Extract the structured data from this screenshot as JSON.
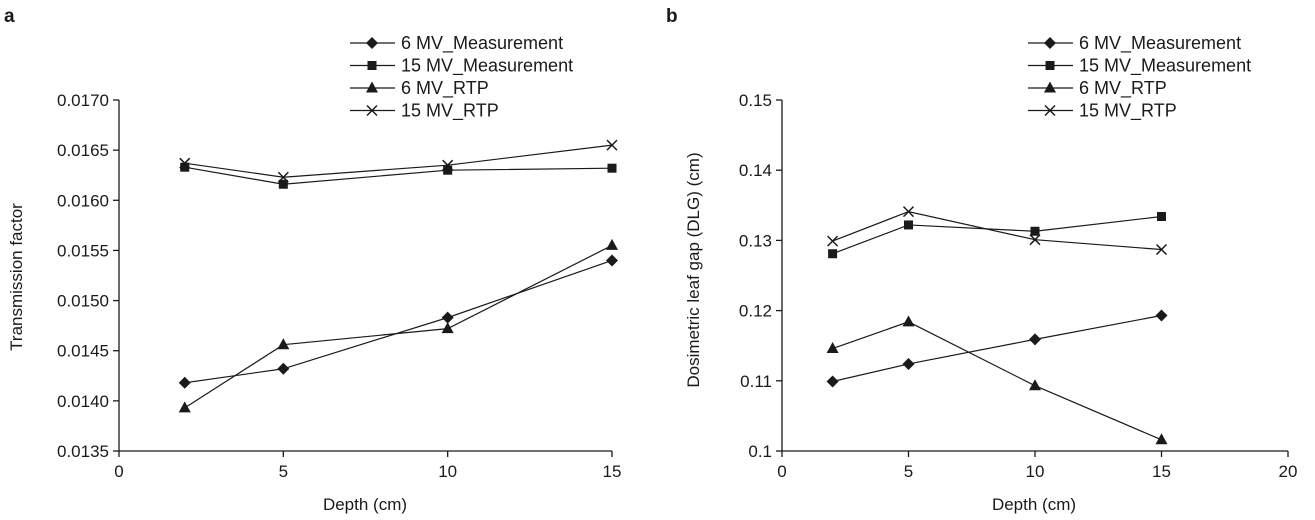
{
  "chart_data": [
    {
      "panel": "a",
      "type": "line",
      "xlabel": "Depth (cm)",
      "ylabel": "Transmission factor",
      "xlim": [
        0,
        15
      ],
      "ylim": [
        0.0135,
        0.017
      ],
      "xticks": [
        "0",
        "5",
        "10",
        "15"
      ],
      "yticks": [
        "0.0135",
        "0.0140",
        "0.0145",
        "0.0150",
        "0.0155",
        "0.0160",
        "0.0165",
        "0.0170"
      ],
      "legend_position": "top-right",
      "x": [
        2,
        5,
        10,
        15
      ],
      "series": [
        {
          "name": "6 MV_Measurement",
          "marker": "diamond",
          "values": [
            0.01418,
            0.01432,
            0.01483,
            0.0154
          ]
        },
        {
          "name": "15 MV_Measurement",
          "marker": "square",
          "values": [
            0.01633,
            0.01616,
            0.0163,
            0.01632
          ]
        },
        {
          "name": "6 MV_RTP",
          "marker": "triangle",
          "values": [
            0.01393,
            0.01456,
            0.01472,
            0.01555
          ]
        },
        {
          "name": "15 MV_RTP",
          "marker": "x",
          "values": [
            0.01637,
            0.01623,
            0.01635,
            0.01655
          ]
        }
      ]
    },
    {
      "panel": "b",
      "type": "line",
      "xlabel": "Depth (cm)",
      "ylabel": "Dosimetric leaf gap (DLG) (cm)",
      "xlim": [
        0,
        20
      ],
      "ylim": [
        0.1,
        0.15
      ],
      "xticks": [
        "0",
        "5",
        "10",
        "15",
        "20"
      ],
      "yticks": [
        "0.1",
        "0.11",
        "0.12",
        "0.13",
        "0.14",
        "0.15"
      ],
      "legend_position": "top-right",
      "x": [
        2,
        5,
        10,
        15
      ],
      "series": [
        {
          "name": "6 MV_Measurement",
          "marker": "diamond",
          "values": [
            0.1099,
            0.1124,
            0.1159,
            0.1193
          ]
        },
        {
          "name": "15 MV_Measurement",
          "marker": "square",
          "values": [
            0.1281,
            0.1322,
            0.1313,
            0.1334
          ]
        },
        {
          "name": "6 MV_RTP",
          "marker": "triangle",
          "values": [
            0.1146,
            0.1184,
            0.1093,
            0.1016
          ]
        },
        {
          "name": "15 MV_RTP",
          "marker": "x",
          "values": [
            0.1299,
            0.1341,
            0.1301,
            0.1287
          ]
        }
      ]
    }
  ]
}
